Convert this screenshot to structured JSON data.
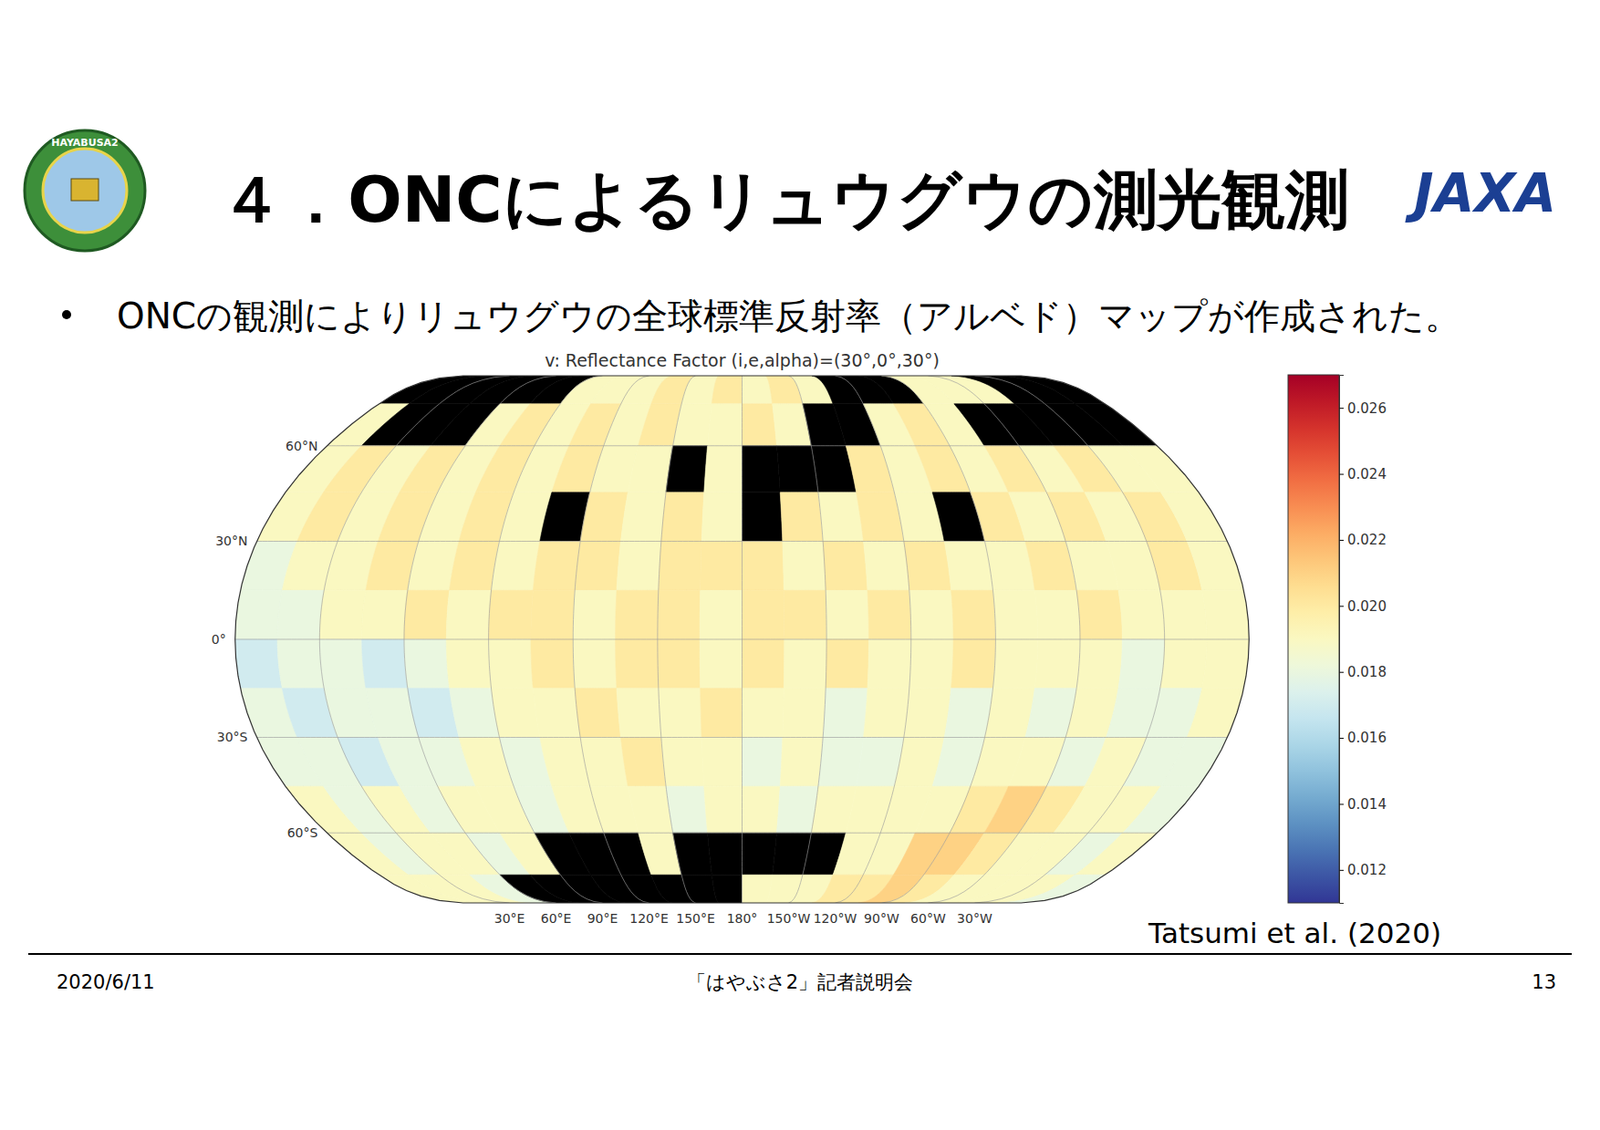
{
  "slide": {
    "title": "４．ONCによるリュウグウの測光観測",
    "bullet": "ONCの観測によりリュウグウの全球標準反射率（アルベド）マップが作成された。",
    "credit": "Tatsumi et al. (2020)",
    "date": "2020/6/11",
    "footer": "「はやぶさ2」記者説明会",
    "page": "13",
    "logo_left": "HAYABUSA2",
    "logo_right": "JAXA"
  },
  "chart_data": {
    "type": "heatmap",
    "title": "v: Reflectance Factor (i,e,alpha)=(30°,0°,30°)",
    "xlim": [
      0,
      360
    ],
    "ylim": [
      -90,
      90
    ],
    "xticks": [
      {
        "value": 30,
        "label": "30°E"
      },
      {
        "value": 60,
        "label": "60°E"
      },
      {
        "value": 90,
        "label": "90°E"
      },
      {
        "value": 120,
        "label": "120°E"
      },
      {
        "value": 150,
        "label": "150°E"
      },
      {
        "value": 180,
        "label": "180°"
      },
      {
        "value": 210,
        "label": "150°W"
      },
      {
        "value": 240,
        "label": "120°W"
      },
      {
        "value": 270,
        "label": "90°W"
      },
      {
        "value": 300,
        "label": "60°W"
      },
      {
        "value": 330,
        "label": "30°W"
      }
    ],
    "yticks": [
      {
        "value": 60,
        "label": "60°N"
      },
      {
        "value": 30,
        "label": "30°N"
      },
      {
        "value": 0,
        "label": "0°"
      },
      {
        "value": -30,
        "label": "30°S"
      },
      {
        "value": -60,
        "label": "60°S"
      }
    ],
    "grid": true,
    "x_bins": [
      0,
      15,
      30,
      45,
      60,
      75,
      90,
      105,
      120,
      135,
      150,
      165,
      180,
      195,
      210,
      225,
      240,
      255,
      270,
      285,
      300,
      315,
      330,
      345,
      360
    ],
    "y_bins": [
      90,
      75,
      60,
      45,
      30,
      15,
      0,
      -15,
      -30,
      -45,
      -60,
      -75,
      -90
    ],
    "cells": [
      [
        null,
        null,
        null,
        null,
        null,
        null,
        0.019,
        0.019,
        0.019,
        0.02,
        0.019,
        0.02,
        0.019,
        0.02,
        0.019,
        null,
        null,
        null,
        0.019,
        0.019,
        0.019,
        null,
        null,
        null
      ],
      [
        0.019,
        null,
        null,
        null,
        0.019,
        0.02,
        0.019,
        0.02,
        0.019,
        0.02,
        0.019,
        0.019,
        0.02,
        0.019,
        null,
        null,
        0.019,
        0.02,
        0.019,
        null,
        null,
        null,
        null,
        null
      ],
      [
        0.019,
        0.02,
        0.019,
        0.02,
        0.019,
        0.02,
        0.019,
        0.02,
        0.019,
        0.019,
        null,
        0.019,
        null,
        null,
        null,
        0.02,
        0.019,
        0.02,
        0.019,
        0.02,
        0.019,
        0.02,
        0.019,
        0.019
      ],
      [
        0.019,
        0.02,
        0.019,
        0.02,
        0.019,
        0.02,
        0.019,
        null,
        0.02,
        0.019,
        0.02,
        0.019,
        null,
        0.02,
        0.019,
        0.02,
        0.019,
        null,
        0.02,
        0.019,
        0.02,
        0.019,
        0.02,
        0.019
      ],
      [
        0.018,
        0.019,
        0.019,
        0.02,
        0.019,
        0.02,
        0.019,
        0.02,
        0.02,
        0.019,
        0.02,
        0.02,
        0.02,
        0.019,
        0.02,
        0.019,
        0.02,
        0.019,
        0.019,
        0.02,
        0.019,
        0.019,
        0.02,
        0.019
      ],
      [
        0.018,
        0.018,
        0.019,
        0.019,
        0.02,
        0.019,
        0.02,
        0.02,
        0.019,
        0.02,
        0.02,
        0.019,
        0.02,
        0.02,
        0.019,
        0.02,
        0.019,
        0.02,
        0.019,
        0.019,
        0.02,
        0.019,
        0.019,
        0.019
      ],
      [
        0.017,
        0.018,
        0.018,
        0.017,
        0.018,
        0.019,
        0.019,
        0.02,
        0.019,
        0.02,
        0.02,
        0.019,
        0.02,
        0.019,
        0.02,
        0.019,
        0.019,
        0.02,
        0.019,
        0.019,
        0.019,
        0.018,
        0.019,
        0.019
      ],
      [
        0.018,
        0.017,
        0.018,
        0.018,
        0.017,
        0.018,
        0.019,
        0.019,
        0.02,
        0.019,
        0.019,
        0.02,
        0.019,
        0.019,
        0.018,
        0.019,
        0.019,
        0.018,
        0.019,
        0.018,
        0.019,
        0.018,
        0.018,
        0.019
      ],
      [
        0.018,
        0.018,
        0.017,
        0.018,
        0.018,
        0.019,
        0.018,
        0.019,
        0.019,
        0.02,
        0.019,
        0.019,
        0.018,
        0.019,
        0.018,
        0.018,
        0.019,
        0.018,
        0.019,
        0.019,
        0.018,
        0.019,
        0.018,
        0.018
      ],
      [
        0.019,
        0.018,
        0.019,
        0.018,
        0.019,
        0.019,
        0.018,
        0.019,
        0.019,
        0.019,
        0.018,
        0.019,
        0.019,
        0.018,
        0.019,
        0.019,
        0.019,
        0.019,
        0.02,
        0.021,
        0.02,
        0.019,
        0.019,
        0.018
      ],
      [
        0.019,
        0.018,
        0.019,
        0.019,
        0.018,
        0.019,
        null,
        null,
        null,
        0.019,
        null,
        null,
        null,
        null,
        null,
        0.019,
        0.019,
        0.021,
        0.021,
        0.02,
        0.019,
        0.019,
        0.018,
        0.019
      ],
      [
        0.019,
        0.019,
        0.019,
        0.018,
        null,
        null,
        null,
        null,
        null,
        null,
        null,
        null,
        0.019,
        0.019,
        0.019,
        0.02,
        0.02,
        0.021,
        0.02,
        0.019,
        0.019,
        0.019,
        0.019,
        0.018
      ]
    ],
    "colorbar": {
      "range": [
        0.011,
        0.027
      ],
      "ticks": [
        {
          "value": 0.012,
          "label": "0.012"
        },
        {
          "value": 0.014,
          "label": "0.014"
        },
        {
          "value": 0.016,
          "label": "0.016"
        },
        {
          "value": 0.018,
          "label": "0.018"
        },
        {
          "value": 0.02,
          "label": "0.020"
        },
        {
          "value": 0.022,
          "label": "0.022"
        },
        {
          "value": 0.024,
          "label": "0.024"
        },
        {
          "value": 0.026,
          "label": "0.026"
        }
      ]
    }
  }
}
